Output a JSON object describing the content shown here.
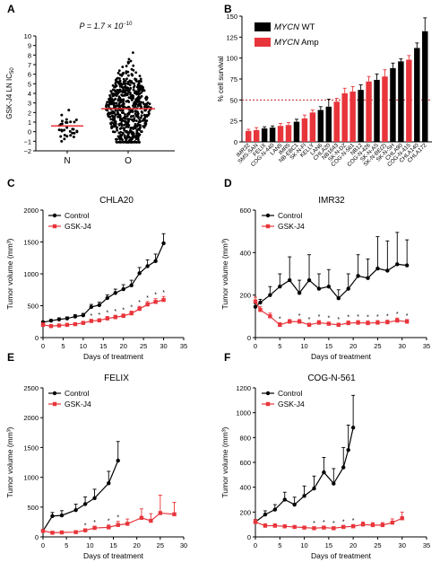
{
  "chart_data": [
    {
      "panel": "A",
      "type": "scatter",
      "title": "",
      "annotation": "P = 1.7 × 10",
      "annotation_exp": "−10",
      "ylabel": "GSK-J4 LN IC",
      "ylabel_sub": "50",
      "ylim": [
        -2,
        10
      ],
      "yticks": [
        -2,
        -1,
        0,
        1,
        2,
        3,
        4,
        5,
        6,
        7,
        8,
        9,
        10
      ],
      "categories": [
        "N",
        "O"
      ],
      "medians": [
        0.6,
        2.4
      ],
      "colors": {
        "points": "#000000",
        "median": "#e8353b"
      }
    },
    {
      "panel": "B",
      "type": "bar",
      "ylabel": "% cell survival",
      "ylim": [
        0,
        150
      ],
      "yticks": [
        0,
        25,
        50,
        75,
        100,
        125,
        150
      ],
      "threshold": 50,
      "legend_position": "top-left",
      "legend": [
        {
          "label_italic": "MYCN",
          "label_rest": " WT",
          "color": "#000000"
        },
        {
          "label_italic": "MYCN",
          "label_rest": " Amp",
          "color": "#e8353b"
        }
      ],
      "categories": [
        "IMR32",
        "SMS-SAN",
        "FELIX",
        "COG-N-440",
        "LAN5",
        "IMR5",
        "NB-EBC1",
        "SK-N-FI",
        "KELLY",
        "LAN6",
        "CHLA20",
        "NB1643",
        "SK-N-DZ",
        "COG-N-561",
        "NB12",
        "COG-N-426",
        "SK-N-AS",
        "SK-N-BE(2)",
        "SK-N-SH",
        "CHLA90",
        "COG-N-415",
        "CHLA140",
        "CHLA172"
      ],
      "values": [
        13,
        14,
        16,
        17,
        19,
        20,
        24,
        28,
        35,
        38,
        42,
        48,
        58,
        60,
        62,
        72,
        74,
        78,
        88,
        96,
        98,
        112,
        132
      ],
      "errors": [
        2,
        3,
        2,
        2,
        3,
        3,
        3,
        4,
        3,
        4,
        9,
        4,
        6,
        6,
        6,
        6,
        7,
        8,
        6,
        3,
        5,
        6,
        16
      ],
      "groups": [
        "amp",
        "amp",
        "wt",
        "wt",
        "amp",
        "amp",
        "wt",
        "amp",
        "amp",
        "wt",
        "wt",
        "amp",
        "amp",
        "amp",
        "wt",
        "amp",
        "wt",
        "amp",
        "wt",
        "wt",
        "amp",
        "wt",
        "wt"
      ]
    },
    {
      "panel": "C",
      "type": "line",
      "title": "CHLA20",
      "xlabel": "Days of treatment",
      "ylabel": "Tumor volume (mm³)",
      "xlim": [
        0,
        35
      ],
      "xticks": [
        0,
        5,
        10,
        15,
        20,
        25,
        30,
        35
      ],
      "ylim": [
        0,
        2000
      ],
      "yticks": [
        0,
        500,
        1000,
        1500,
        2000
      ],
      "series": [
        {
          "name": "Control",
          "color": "#000000",
          "x": [
            0,
            2,
            4,
            6,
            8,
            10,
            12,
            14,
            16,
            18,
            20,
            22,
            24,
            26,
            28,
            30
          ],
          "y": [
            240,
            265,
            285,
            300,
            330,
            350,
            480,
            510,
            620,
            700,
            760,
            820,
            1010,
            1120,
            1200,
            1480
          ],
          "err": [
            20,
            20,
            25,
            25,
            30,
            30,
            40,
            45,
            50,
            60,
            70,
            80,
            90,
            100,
            110,
            150
          ]
        },
        {
          "name": "GSK-J4",
          "color": "#e8353b",
          "x": [
            0,
            2,
            4,
            6,
            8,
            10,
            12,
            14,
            16,
            18,
            20,
            22,
            24,
            26,
            28,
            30
          ],
          "y": [
            200,
            180,
            190,
            200,
            210,
            230,
            260,
            270,
            300,
            320,
            340,
            380,
            450,
            520,
            560,
            590
          ],
          "err": [
            30,
            20,
            20,
            20,
            20,
            25,
            25,
            25,
            30,
            30,
            30,
            35,
            40,
            45,
            50,
            55
          ]
        }
      ],
      "stars": [
        12,
        14,
        16,
        18,
        20,
        22,
        24,
        26,
        28,
        30
      ]
    },
    {
      "panel": "D",
      "type": "line",
      "title": "IMR32",
      "xlabel": "Days of treatment",
      "ylabel": "Tumor volume (mm³)",
      "xlim": [
        0,
        35
      ],
      "xticks": [
        0,
        5,
        10,
        15,
        20,
        25,
        30,
        35
      ],
      "ylim": [
        0,
        600
      ],
      "yticks": [
        0,
        200,
        400,
        600
      ],
      "series": [
        {
          "name": "Control",
          "color": "#000000",
          "x": [
            0,
            1,
            3,
            5,
            7,
            9,
            11,
            13,
            15,
            17,
            19,
            21,
            23,
            25,
            27,
            29,
            31
          ],
          "y": [
            145,
            165,
            200,
            240,
            270,
            210,
            270,
            230,
            240,
            185,
            230,
            290,
            280,
            325,
            315,
            345,
            340
          ],
          "err": [
            15,
            15,
            40,
            60,
            110,
            60,
            120,
            70,
            80,
            40,
            70,
            100,
            90,
            150,
            140,
            150,
            120
          ]
        },
        {
          "name": "GSK-J4",
          "color": "#e8353b",
          "x": [
            0,
            1,
            3,
            5,
            7,
            9,
            11,
            13,
            15,
            17,
            19,
            21,
            23,
            25,
            27,
            29,
            31
          ],
          "y": [
            170,
            130,
            100,
            60,
            75,
            75,
            60,
            70,
            65,
            60,
            68,
            70,
            68,
            70,
            72,
            80,
            75
          ],
          "err": [
            20,
            15,
            15,
            10,
            10,
            10,
            8,
            10,
            8,
            8,
            10,
            10,
            10,
            10,
            10,
            12,
            10
          ]
        }
      ],
      "stars": [
        5,
        9,
        11,
        13,
        15,
        17,
        19,
        21,
        23,
        25,
        27,
        29,
        31
      ]
    },
    {
      "panel": "E",
      "type": "line",
      "title": "FELIX",
      "xlabel": "Days of treatment",
      "ylabel": "Tumor volume (mm³)",
      "xlim": [
        0,
        30
      ],
      "xticks": [
        0,
        5,
        10,
        15,
        20,
        25,
        30
      ],
      "ylim": [
        0,
        2500
      ],
      "yticks": [
        0,
        500,
        1000,
        1500,
        2000,
        2500
      ],
      "series": [
        {
          "name": "Control",
          "color": "#000000",
          "x": [
            0,
            2,
            4,
            7,
            9,
            11,
            14,
            16
          ],
          "y": [
            100,
            350,
            360,
            450,
            550,
            650,
            900,
            1280
          ],
          "err": [
            20,
            60,
            80,
            100,
            120,
            150,
            200,
            320
          ]
        },
        {
          "name": "GSK-J4",
          "color": "#e8353b",
          "x": [
            0,
            2,
            4,
            7,
            9,
            11,
            14,
            16,
            18,
            21,
            23,
            25,
            28
          ],
          "y": [
            100,
            70,
            75,
            80,
            110,
            150,
            160,
            200,
            220,
            320,
            270,
            400,
            380
          ],
          "err": [
            20,
            10,
            10,
            15,
            20,
            30,
            40,
            60,
            80,
            150,
            120,
            300,
            200
          ]
        }
      ],
      "stars": [
        9,
        11,
        14,
        16
      ]
    },
    {
      "panel": "F",
      "type": "line",
      "title": "COG-N-561",
      "xlabel": "Days of treatment",
      "ylabel": "Tumor volume (mm³)",
      "xlim": [
        0,
        35
      ],
      "xticks": [
        0,
        5,
        10,
        15,
        20,
        25,
        30,
        35
      ],
      "ylim": [
        0,
        1200
      ],
      "yticks": [
        0,
        200,
        400,
        600,
        800,
        1000,
        1200
      ],
      "series": [
        {
          "name": "Control",
          "color": "#000000",
          "x": [
            0,
            2,
            4,
            6,
            8,
            10,
            12,
            14,
            16,
            18,
            19,
            20
          ],
          "y": [
            120,
            180,
            220,
            300,
            260,
            330,
            390,
            520,
            430,
            560,
            700,
            880
          ],
          "err": [
            20,
            30,
            40,
            60,
            60,
            80,
            100,
            120,
            120,
            160,
            200,
            260
          ]
        },
        {
          "name": "GSK-J4",
          "color": "#e8353b",
          "x": [
            0,
            2,
            4,
            6,
            8,
            10,
            12,
            14,
            16,
            18,
            20,
            22,
            24,
            26,
            28,
            30
          ],
          "y": [
            120,
            90,
            90,
            85,
            80,
            75,
            70,
            75,
            70,
            80,
            85,
            100,
            95,
            95,
            115,
            150
          ],
          "err": [
            20,
            15,
            15,
            10,
            10,
            10,
            10,
            10,
            10,
            12,
            15,
            20,
            20,
            20,
            30,
            50
          ]
        }
      ],
      "stars": [
        12,
        14,
        16,
        18,
        20
      ]
    }
  ],
  "panel_labels": [
    "A",
    "B",
    "C",
    "D",
    "E",
    "F"
  ],
  "legend_labels": {
    "control": "Control",
    "treatment": "GSK-J4"
  },
  "significance_mark": "*"
}
